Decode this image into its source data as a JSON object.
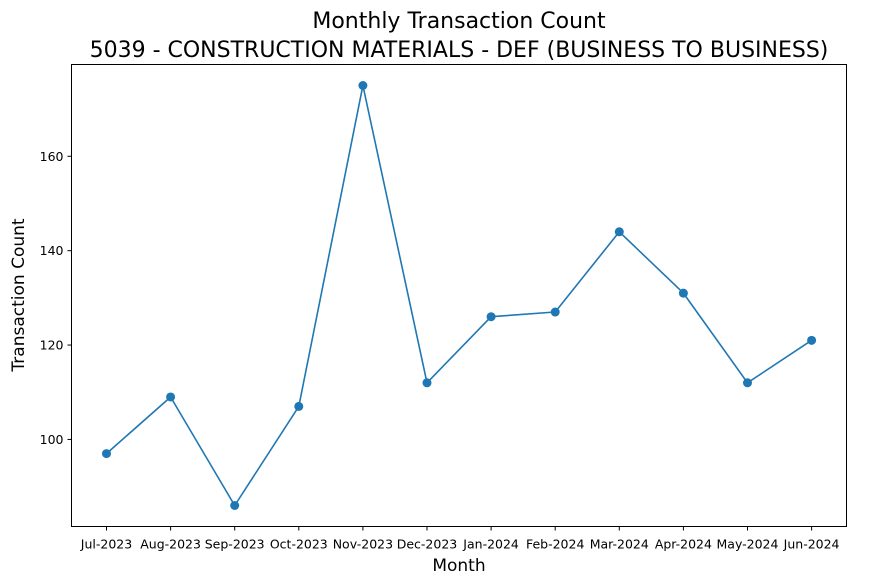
{
  "chart_data": {
    "type": "line",
    "title": "Monthly Transaction Count",
    "subtitle": "5039 - CONSTRUCTION MATERIALS - DEF (BUSINESS TO BUSINESS)",
    "xlabel": "Month",
    "ylabel": "Transaction Count",
    "categories": [
      "Jul-2023",
      "Aug-2023",
      "Sep-2023",
      "Oct-2023",
      "Nov-2023",
      "Dec-2023",
      "Jan-2024",
      "Feb-2024",
      "Mar-2024",
      "Apr-2024",
      "May-2024",
      "Jun-2024"
    ],
    "series": [
      {
        "values": [
          97,
          109,
          86,
          107,
          175,
          112,
          126,
          127,
          144,
          131,
          112,
          121
        ],
        "color": "#1f77b4",
        "marker": "circle"
      }
    ],
    "yticks": [
      100,
      120,
      140,
      160
    ],
    "ylim": [
      81.55,
      179.45
    ],
    "grid": false,
    "legend": "none"
  }
}
